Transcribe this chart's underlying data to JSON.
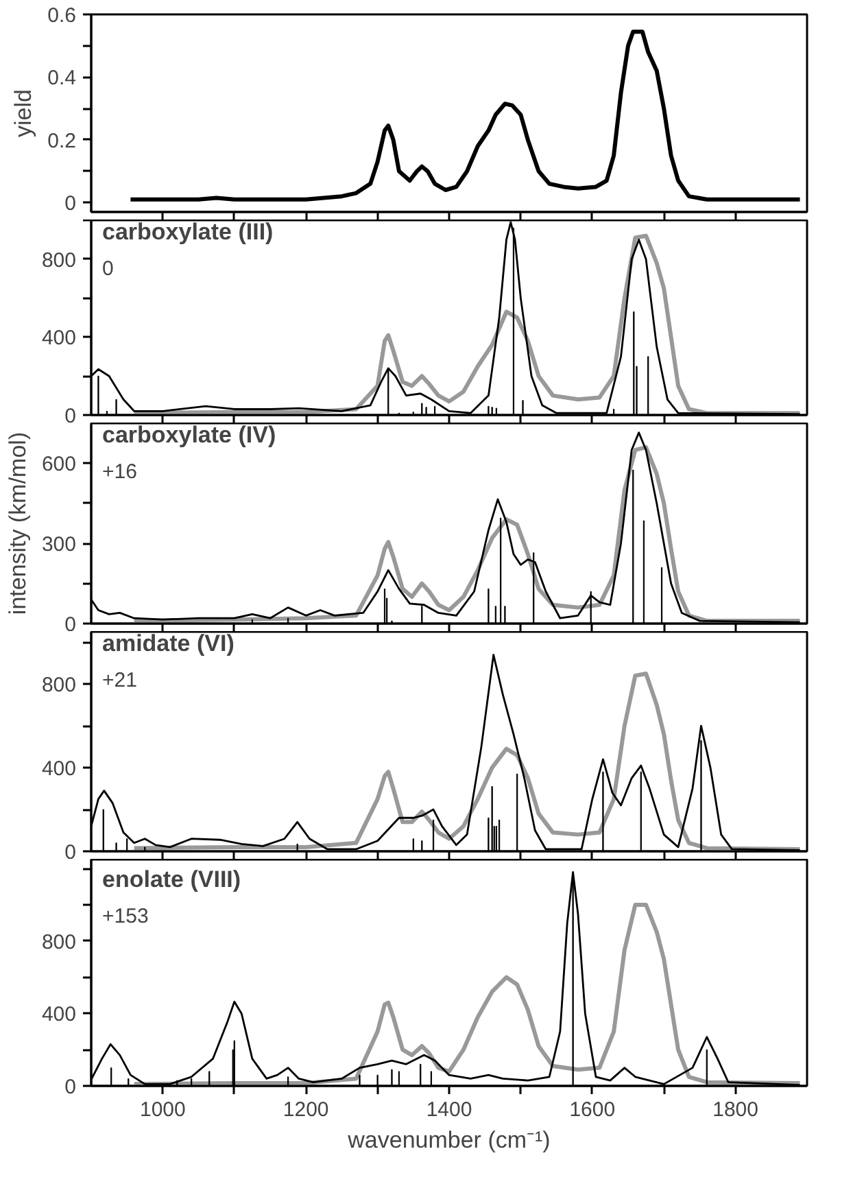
{
  "chart_data": [
    {
      "type": "line",
      "ylabel": "yield",
      "xlim": [
        900,
        1900
      ],
      "ylim": [
        -0.03,
        0.6
      ],
      "xticks": [
        1000,
        {
          "value": 1100,
          "label": null
        },
        1200,
        {
          "value": 1300,
          "label": null
        },
        1400,
        {
          "value": 1500,
          "label": null
        },
        1600,
        {
          "value": 1700,
          "label": null
        },
        1800
      ],
      "yticks": [
        0,
        {
          "value": 0.1,
          "label": null
        },
        0.2,
        {
          "value": 0.3,
          "label": null
        },
        0.4,
        {
          "value": 0.5,
          "label": null
        },
        0.6
      ],
      "tick_labels": "y",
      "series": [
        {
          "type": "line",
          "color": "#000000",
          "x": [
            955,
            1000,
            1050,
            1075,
            1100,
            1150,
            1200,
            1250,
            1270,
            1290,
            1300,
            1310,
            1315,
            1322,
            1330,
            1345,
            1355,
            1362,
            1370,
            1380,
            1395,
            1410,
            1425,
            1440,
            1455,
            1465,
            1478,
            1488,
            1500,
            1510,
            1525,
            1540,
            1560,
            1580,
            1605,
            1620,
            1630,
            1640,
            1650,
            1657,
            1670,
            1678,
            1690,
            1700,
            1710,
            1720,
            1735,
            1760,
            1800,
            1850,
            1890
          ],
          "values": [
            0.01,
            0.01,
            0.01,
            0.015,
            0.01,
            0.01,
            0.01,
            0.02,
            0.03,
            0.06,
            0.13,
            0.23,
            0.245,
            0.2,
            0.1,
            0.07,
            0.1,
            0.115,
            0.1,
            0.06,
            0.04,
            0.05,
            0.1,
            0.18,
            0.23,
            0.28,
            0.315,
            0.31,
            0.28,
            0.2,
            0.1,
            0.06,
            0.05,
            0.045,
            0.05,
            0.07,
            0.15,
            0.35,
            0.5,
            0.545,
            0.545,
            0.48,
            0.42,
            0.3,
            0.15,
            0.07,
            0.02,
            0.01,
            0.01,
            0.01,
            0.01
          ]
        }
      ]
    },
    {
      "type": "line",
      "title": "carboxylate (III)",
      "subtitle": "0",
      "xlim": [
        900,
        1900
      ],
      "ylim": [
        0,
        1000
      ],
      "xticks": [
        1000,
        {
          "value": 1100,
          "label": null
        },
        1200,
        {
          "value": 1300,
          "label": null
        },
        1400,
        {
          "value": 1500,
          "label": null
        },
        1600,
        {
          "value": 1700,
          "label": null
        },
        1800
      ],
      "yticks": [
        0,
        {
          "value": 200,
          "label": null
        },
        400,
        {
          "value": 600,
          "label": null
        },
        800,
        {
          "value": 1000,
          "label": null
        }
      ],
      "tick_labels": "y",
      "series": [
        {
          "type": "line",
          "color": "#999999",
          "x": [
            960,
            1100,
            1200,
            1270,
            1300,
            1310,
            1315,
            1322,
            1335,
            1348,
            1362,
            1372,
            1385,
            1400,
            1420,
            1440,
            1460,
            1480,
            1495,
            1510,
            1525,
            1545,
            1580,
            1610,
            1630,
            1645,
            1660,
            1675,
            1690,
            1700,
            1710,
            1720,
            1735,
            1760,
            1890
          ],
          "values": [
            10,
            15,
            15,
            30,
            150,
            380,
            410,
            330,
            170,
            150,
            200,
            160,
            100,
            70,
            120,
            250,
            360,
            530,
            500,
            380,
            200,
            100,
            80,
            90,
            200,
            600,
            910,
            920,
            780,
            650,
            400,
            150,
            30,
            10,
            10
          ]
        },
        {
          "type": "line",
          "color": "#000000",
          "x": [
            900,
            910,
            925,
            945,
            960,
            1000,
            1060,
            1100,
            1150,
            1190,
            1250,
            1290,
            1305,
            1315,
            1325,
            1340,
            1360,
            1375,
            1400,
            1430,
            1455,
            1470,
            1480,
            1486,
            1492,
            1500,
            1515,
            1530,
            1550,
            1620,
            1640,
            1655,
            1665,
            1675,
            1690,
            1705,
            1720,
            1890
          ],
          "values": [
            200,
            235,
            200,
            80,
            20,
            20,
            45,
            30,
            30,
            35,
            20,
            50,
            170,
            240,
            200,
            100,
            110,
            80,
            20,
            10,
            100,
            500,
            900,
            990,
            900,
            600,
            200,
            50,
            10,
            10,
            300,
            800,
            900,
            800,
            350,
            80,
            10,
            5
          ]
        },
        {
          "type": "bar",
          "color": "#000000",
          "x": [
            910,
            922,
            935,
            1315,
            1330,
            1350,
            1362,
            1368,
            1380,
            1455,
            1460,
            1466,
            1490,
            1503,
            1630,
            1658,
            1662,
            1678
          ],
          "values": [
            200,
            20,
            80,
            230,
            10,
            15,
            60,
            40,
            45,
            45,
            40,
            35,
            960,
            75,
            30,
            530,
            250,
            300
          ]
        }
      ]
    },
    {
      "type": "line",
      "title": "carboxylate (IV)",
      "subtitle": "+16",
      "ylabel": "intensity (km/mol)",
      "xlim": [
        900,
        1900
      ],
      "ylim": [
        0,
        750
      ],
      "xticks": [
        1000,
        {
          "value": 1100,
          "label": null
        },
        1200,
        {
          "value": 1300,
          "label": null
        },
        1400,
        {
          "value": 1500,
          "label": null
        },
        1600,
        {
          "value": 1700,
          "label": null
        },
        1800
      ],
      "yticks": [
        0,
        {
          "value": 150,
          "label": null
        },
        300,
        {
          "value": 450,
          "label": null
        },
        600
      ],
      "tick_labels": "y",
      "series": [
        {
          "type": "line",
          "color": "#999999",
          "x": [
            960,
            1100,
            1200,
            1270,
            1300,
            1310,
            1315,
            1322,
            1335,
            1348,
            1362,
            1372,
            1385,
            1400,
            1420,
            1440,
            1460,
            1480,
            1495,
            1510,
            1525,
            1545,
            1580,
            1610,
            1630,
            1645,
            1660,
            1675,
            1690,
            1700,
            1710,
            1720,
            1735,
            1760,
            1890
          ],
          "values": [
            10,
            15,
            20,
            30,
            180,
            280,
            305,
            250,
            130,
            100,
            150,
            120,
            70,
            50,
            100,
            200,
            320,
            390,
            370,
            260,
            130,
            70,
            60,
            70,
            180,
            500,
            650,
            660,
            560,
            450,
            280,
            120,
            30,
            10,
            10
          ]
        },
        {
          "type": "line",
          "color": "#000000",
          "x": [
            900,
            910,
            925,
            940,
            960,
            1000,
            1050,
            1100,
            1125,
            1150,
            1175,
            1200,
            1220,
            1240,
            1280,
            1300,
            1315,
            1330,
            1345,
            1365,
            1385,
            1410,
            1435,
            1455,
            1468,
            1480,
            1490,
            1500,
            1510,
            1520,
            1535,
            1555,
            1580,
            1598,
            1610,
            1625,
            1640,
            1655,
            1665,
            1675,
            1690,
            1700,
            1710,
            1725,
            1750,
            1890
          ],
          "values": [
            90,
            50,
            35,
            40,
            20,
            15,
            20,
            20,
            35,
            20,
            60,
            30,
            50,
            30,
            40,
            120,
            200,
            130,
            75,
            70,
            40,
            30,
            120,
            350,
            465,
            380,
            260,
            220,
            240,
            230,
            120,
            20,
            30,
            105,
            80,
            70,
            300,
            650,
            715,
            650,
            450,
            300,
            150,
            40,
            10,
            5
          ]
        },
        {
          "type": "bar",
          "color": "#000000",
          "x": [
            1125,
            1175,
            1310,
            1313,
            1320,
            1362,
            1455,
            1465,
            1472,
            1478,
            1518,
            1598,
            1657,
            1672,
            1697
          ],
          "values": [
            15,
            20,
            130,
            95,
            10,
            65,
            130,
            65,
            395,
            65,
            265,
            120,
            575,
            385,
            210
          ]
        }
      ]
    },
    {
      "type": "line",
      "title": "amidate (VI)",
      "subtitle": "+21",
      "xlim": [
        900,
        1900
      ],
      "ylim": [
        0,
        1050
      ],
      "xticks": [
        1000,
        {
          "value": 1100,
          "label": null
        },
        1200,
        {
          "value": 1300,
          "label": null
        },
        1400,
        {
          "value": 1500,
          "label": null
        },
        1600,
        {
          "value": 1700,
          "label": null
        },
        1800
      ],
      "yticks": [
        0,
        {
          "value": 200,
          "label": null
        },
        400,
        {
          "value": 600,
          "label": null
        },
        800,
        {
          "value": 1000,
          "label": null
        }
      ],
      "tick_labels": "y",
      "series": [
        {
          "type": "line",
          "color": "#999999",
          "x": [
            960,
            1100,
            1200,
            1270,
            1300,
            1310,
            1315,
            1322,
            1335,
            1348,
            1362,
            1372,
            1385,
            1400,
            1420,
            1440,
            1460,
            1480,
            1495,
            1510,
            1525,
            1545,
            1580,
            1610,
            1630,
            1645,
            1660,
            1675,
            1690,
            1700,
            1710,
            1720,
            1735,
            1760,
            1890
          ],
          "values": [
            15,
            20,
            20,
            40,
            250,
            360,
            380,
            300,
            140,
            140,
            190,
            150,
            90,
            60,
            120,
            250,
            400,
            490,
            460,
            350,
            180,
            90,
            80,
            90,
            250,
            600,
            840,
            850,
            700,
            560,
            340,
            150,
            40,
            15,
            10
          ]
        },
        {
          "type": "line",
          "color": "#000000",
          "x": [
            900,
            910,
            918,
            930,
            945,
            960,
            975,
            990,
            1010,
            1040,
            1080,
            1110,
            1140,
            1170,
            1188,
            1205,
            1230,
            1270,
            1300,
            1330,
            1350,
            1362,
            1378,
            1390,
            1410,
            1425,
            1445,
            1462,
            1475,
            1490,
            1505,
            1520,
            1535,
            1585,
            1600,
            1615,
            1628,
            1640,
            1655,
            1668,
            1680,
            1700,
            1720,
            1740,
            1752,
            1765,
            1780,
            1795,
            1890
          ],
          "values": [
            120,
            250,
            290,
            230,
            90,
            40,
            60,
            30,
            20,
            60,
            55,
            35,
            25,
            60,
            140,
            60,
            10,
            10,
            50,
            160,
            160,
            170,
            200,
            120,
            30,
            80,
            500,
            940,
            750,
            560,
            350,
            100,
            10,
            10,
            250,
            440,
            280,
            220,
            350,
            410,
            300,
            80,
            20,
            300,
            600,
            400,
            80,
            10,
            5
          ]
        },
        {
          "type": "bar",
          "color": "#000000",
          "x": [
            917,
            935,
            950,
            975,
            1188,
            1350,
            1362,
            1378,
            1455,
            1460,
            1463,
            1466,
            1470,
            1495,
            1615,
            1668,
            1752
          ],
          "values": [
            200,
            40,
            60,
            20,
            35,
            60,
            50,
            150,
            160,
            310,
            120,
            120,
            150,
            370,
            380,
            380,
            530
          ]
        }
      ]
    },
    {
      "type": "line",
      "title": "enolate (VIII)",
      "subtitle": "+153",
      "xlabel": "wavenumber (cm⁻¹)",
      "xlim": [
        900,
        1900
      ],
      "ylim": [
        0,
        1250
      ],
      "xticks": [
        1000,
        {
          "value": 1100,
          "label": null
        },
        1200,
        {
          "value": 1300,
          "label": null
        },
        1400,
        {
          "value": 1500,
          "label": null
        },
        1600,
        {
          "value": 1700,
          "label": null
        },
        1800
      ],
      "yticks": [
        0,
        {
          "value": 200,
          "label": null
        },
        400,
        {
          "value": 600,
          "label": null
        },
        800,
        {
          "value": 1000,
          "label": null
        },
        {
          "value": 1200,
          "label": null
        }
      ],
      "series": [
        {
          "type": "line",
          "color": "#999999",
          "x": [
            960,
            1100,
            1200,
            1270,
            1300,
            1310,
            1315,
            1322,
            1335,
            1348,
            1362,
            1372,
            1385,
            1400,
            1420,
            1440,
            1460,
            1480,
            1495,
            1510,
            1525,
            1545,
            1580,
            1610,
            1630,
            1645,
            1660,
            1675,
            1690,
            1700,
            1710,
            1720,
            1735,
            1760,
            1890
          ],
          "values": [
            10,
            15,
            15,
            40,
            300,
            450,
            460,
            380,
            200,
            170,
            220,
            180,
            100,
            80,
            200,
            380,
            520,
            600,
            560,
            420,
            220,
            110,
            90,
            100,
            300,
            750,
            1000,
            1000,
            850,
            700,
            450,
            200,
            50,
            20,
            15
          ]
        },
        {
          "type": "line",
          "color": "#000000",
          "x": [
            900,
            915,
            927,
            940,
            955,
            975,
            1010,
            1040,
            1070,
            1090,
            1100,
            1110,
            1125,
            1145,
            1160,
            1175,
            1190,
            1210,
            1250,
            1275,
            1300,
            1320,
            1340,
            1365,
            1380,
            1400,
            1430,
            1455,
            1475,
            1510,
            1540,
            1555,
            1565,
            1573,
            1580,
            1590,
            1605,
            1625,
            1645,
            1660,
            1700,
            1740,
            1760,
            1775,
            1790,
            1890
          ],
          "values": [
            35,
            150,
            230,
            170,
            60,
            10,
            10,
            50,
            150,
            350,
            465,
            400,
            150,
            40,
            60,
            100,
            40,
            20,
            40,
            100,
            120,
            140,
            120,
            170,
            140,
            60,
            40,
            60,
            40,
            30,
            50,
            300,
            900,
            1180,
            950,
            400,
            50,
            30,
            100,
            50,
            10,
            100,
            270,
            150,
            20,
            5
          ]
        },
        {
          "type": "bar",
          "color": "#000000",
          "x": [
            928,
            952,
            1020,
            1040,
            1065,
            1098,
            1100,
            1175,
            1275,
            1300,
            1320,
            1330,
            1360,
            1375,
            1573,
            1760
          ],
          "values": [
            100,
            40,
            30,
            40,
            80,
            200,
            250,
            50,
            60,
            60,
            90,
            80,
            120,
            80,
            1180,
            200
          ]
        }
      ]
    }
  ]
}
